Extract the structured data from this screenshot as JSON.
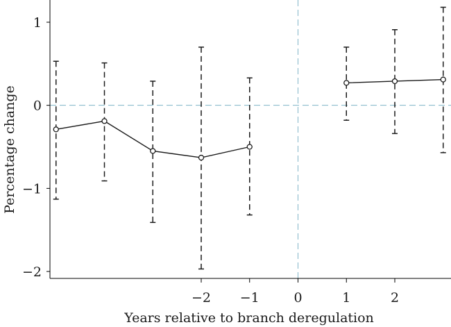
{
  "chart_data": {
    "type": "line",
    "title": "",
    "xlabel": "Years relative to branch deregulation",
    "ylabel": "Percentage change",
    "xlim": [
      -5.0,
      3.0
    ],
    "ylim": [
      -2.1,
      1.25
    ],
    "x_ticks": [
      -2,
      -1,
      0,
      1,
      2
    ],
    "x_tick_labels": [
      "−2",
      "−1",
      "0",
      "1",
      "2"
    ],
    "y_ticks": [
      -2,
      -1,
      0,
      1
    ],
    "y_tick_labels": [
      "−2",
      "−1",
      "0",
      "1"
    ],
    "reference_lines": {
      "horizontal_y": 0,
      "vertical_x": 0
    },
    "segments": [
      {
        "points": [
          {
            "x": -5,
            "y": -0.29,
            "lower": -1.13,
            "upper": 0.53
          },
          {
            "x": -4,
            "y": -0.19,
            "lower": -0.91,
            "upper": 0.51
          },
          {
            "x": -3,
            "y": -0.55,
            "lower": -1.41,
            "upper": 0.29
          },
          {
            "x": -2,
            "y": -0.63,
            "lower": -1.97,
            "upper": 0.7
          },
          {
            "x": -1,
            "y": -0.5,
            "lower": -1.32,
            "upper": 0.33
          }
        ]
      },
      {
        "points": [
          {
            "x": 1,
            "y": 0.27,
            "lower": -0.18,
            "upper": 0.7
          },
          {
            "x": 2,
            "y": 0.29,
            "lower": -0.34,
            "upper": 0.91
          },
          {
            "x": 3,
            "y": 0.31,
            "lower": -0.57,
            "upper": 1.18
          }
        ]
      }
    ]
  }
}
